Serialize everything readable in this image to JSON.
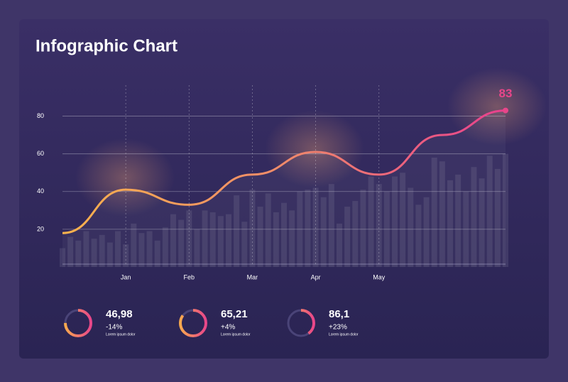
{
  "chart_data": {
    "type": "line",
    "title": "Infographic Chart",
    "xlim": [
      0,
      7
    ],
    "xticks": [
      {
        "value": 1,
        "label": "Jan"
      },
      {
        "value": 2,
        "label": "Feb"
      },
      {
        "value": 3,
        "label": "Mar"
      },
      {
        "value": 4,
        "label": "Apr"
      },
      {
        "value": 5,
        "label": "May"
      }
    ],
    "ylim": [
      0,
      90
    ],
    "yticks": [
      20,
      40,
      60,
      80
    ],
    "grid": true,
    "series": [
      {
        "type": "bar",
        "color": "#ffffff",
        "x": [
          0,
          0.125,
          0.25,
          0.375,
          0.5,
          0.625,
          0.75,
          0.875,
          1,
          1.125,
          1.25,
          1.375,
          1.5,
          1.625,
          1.75,
          1.875,
          2,
          2.125,
          2.25,
          2.375,
          2.5,
          2.625,
          2.75,
          2.875,
          3,
          3.125,
          3.25,
          3.375,
          3.5,
          3.625,
          3.75,
          3.875,
          4,
          4.125,
          4.25,
          4.375,
          4.5,
          4.625,
          4.75,
          4.875,
          5,
          5.125,
          5.25,
          5.375,
          5.5,
          5.625,
          5.75,
          5.875,
          6,
          6.125,
          6.25,
          6.375,
          6.5,
          6.625,
          6.75,
          6.875,
          7
        ],
        "values": [
          10,
          16,
          14,
          19,
          15,
          17,
          13,
          19,
          12,
          23,
          18,
          19,
          14,
          21,
          28,
          25,
          30,
          20,
          30,
          29,
          27,
          28,
          38,
          24,
          41,
          32,
          39,
          29,
          34,
          30,
          40,
          41,
          42,
          37,
          44,
          23,
          32,
          35,
          41,
          48,
          44,
          40,
          48,
          50,
          42,
          33,
          37,
          58,
          56,
          46,
          49,
          40,
          53,
          47,
          59,
          52,
          60
        ]
      },
      {
        "type": "line",
        "color": "#e8468a",
        "x": [
          0,
          1,
          2,
          3,
          4,
          5,
          6,
          7
        ],
        "values": [
          18,
          41,
          33,
          49,
          61,
          49,
          70,
          83
        ]
      }
    ]
  },
  "stats": [
    {
      "value": "46,98",
      "change": "-14%",
      "caption": "Lorem ipsum dolor",
      "ring": 75
    },
    {
      "value": "65,21",
      "change": "+4%",
      "caption": "Lorem ipsum dolor",
      "ring": 85
    },
    {
      "value": "86,1",
      "change": "+23%",
      "caption": "Lorem ipsum dolor",
      "ring": 40
    }
  ]
}
